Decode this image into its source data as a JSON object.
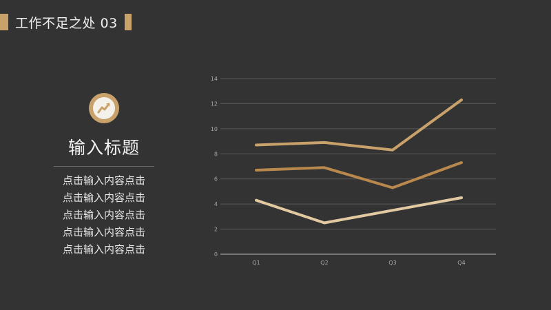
{
  "header": {
    "title": "工作不足之处 03"
  },
  "left_panel": {
    "icon": "trend-chart-icon",
    "heading": "输入标题",
    "lines": [
      "点击输入内容点击",
      "点击输入内容点击",
      "点击输入内容点击",
      "点击输入内容点击",
      "点击输入内容点击"
    ]
  },
  "colors": {
    "accent": "#c9a26b",
    "background": "#333333"
  },
  "chart_data": {
    "type": "line",
    "categories": [
      "Q1",
      "Q2",
      "Q3",
      "Q4"
    ],
    "y_ticks": [
      "0",
      "2",
      "4",
      "6",
      "8",
      "10",
      "12",
      "14"
    ],
    "ylim": [
      0,
      14
    ],
    "grid": true,
    "legend": "none",
    "series": [
      {
        "values": [
          8.7,
          8.9,
          8.3,
          12.3
        ],
        "color": "#c9a26b"
      },
      {
        "values": [
          6.7,
          6.9,
          5.3,
          7.3
        ],
        "color": "#b8884d"
      },
      {
        "values": [
          4.3,
          2.5,
          3.5,
          4.5
        ],
        "color": "#e3c9a1"
      }
    ]
  }
}
